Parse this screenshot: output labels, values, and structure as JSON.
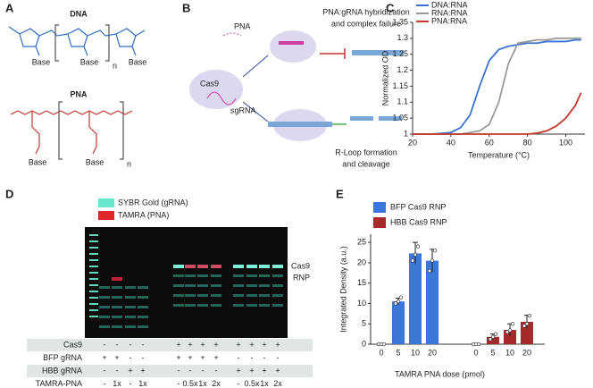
{
  "panel_labels": [
    "A",
    "B",
    "C",
    "D",
    "E"
  ],
  "panel_a": {
    "dna_title": "DNA",
    "pna_title": "PNA",
    "dna_bases": [
      "Base",
      "Base",
      "Base"
    ],
    "pna_bases": [
      "Base",
      "Base"
    ],
    "dna_n": "n",
    "pna_n": "n"
  },
  "panel_b": {
    "pna": "PNA",
    "cas9": "Cas9",
    "sgrna": "sgRNA",
    "failure": [
      "PNA:gRNA hybridization",
      "and complex failure"
    ],
    "cleavage": [
      "R-Loop formation",
      "and cleavage"
    ]
  },
  "panel_d": {
    "legend": [
      "SYBR Gold (gRNA)",
      "TAMRA (PNA)"
    ],
    "legend_colors": [
      "#66e8cf",
      "#e02828"
    ],
    "band_label": [
      "Cas9",
      "RNP"
    ],
    "rows": [
      {
        "label": "Cas9",
        "cells": [
          "-",
          "-",
          "-",
          "-",
          "+",
          "+",
          "+",
          "+",
          "+",
          "+",
          "+",
          "+"
        ]
      },
      {
        "label": "BFP gRNA",
        "cells": [
          "+",
          "+",
          "-",
          "-",
          "+",
          "+",
          "+",
          "+",
          "-",
          "-",
          "-",
          "-"
        ]
      },
      {
        "label": "HBB gRNA",
        "cells": [
          "-",
          "-",
          "+",
          "+",
          "-",
          "-",
          "-",
          "-",
          "+",
          "+",
          "+",
          "+"
        ]
      },
      {
        "label": "TAMRA-PNA",
        "cells": [
          "-",
          "1x",
          "-",
          "1x",
          "-",
          "0.5x",
          "1x",
          "2x",
          "-",
          "0.5x",
          "1x",
          "2x"
        ]
      }
    ]
  },
  "chart_data": [
    {
      "type": "line",
      "xlabel": "Temperature (°C)",
      "ylabel": "Normalized OD",
      "legend": "top-left",
      "x": [
        20,
        30,
        40,
        45,
        50,
        55,
        60,
        65,
        70,
        75,
        80,
        85,
        90,
        95,
        100,
        105,
        108
      ],
      "series": [
        {
          "name": "DNA:RNA",
          "color": "#3a74d0",
          "values": [
            1.0,
            1.0,
            1.005,
            1.02,
            1.06,
            1.15,
            1.23,
            1.265,
            1.275,
            1.28,
            1.285,
            1.285,
            1.29,
            1.29,
            1.29,
            1.295,
            1.295
          ]
        },
        {
          "name": "RNA:RNA",
          "color": "#9a9a9a",
          "values": [
            1.0,
            1.0,
            1.0,
            1.0,
            1.005,
            1.01,
            1.03,
            1.1,
            1.22,
            1.285,
            1.29,
            1.295,
            1.295,
            1.3,
            1.3,
            1.3,
            1.3
          ]
        },
        {
          "name": "PNA:RNA",
          "color": "#c0392b",
          "values": [
            1.0,
            1.0,
            1.0,
            1.0,
            1.0,
            1.0,
            1.0,
            1.0,
            1.0,
            1.0,
            1.0,
            1.003,
            1.01,
            1.025,
            1.05,
            1.09,
            1.13
          ]
        }
      ],
      "xlim": [
        20,
        110
      ],
      "xticks": [
        20,
        40,
        60,
        80,
        100
      ],
      "ylim": [
        1,
        1.35
      ],
      "yticks": [
        1,
        1.05,
        1.1,
        1.15,
        1.2,
        1.25,
        1.3,
        1.35
      ]
    },
    {
      "type": "bar",
      "xlabel": "TAMRA PNA dose (pmol)",
      "ylabel": "Integrated Density (a.u.)",
      "legend": "top-left",
      "categories": [
        "0",
        "5",
        "10",
        "20",
        "0",
        "5",
        "10",
        "20"
      ],
      "series": [
        {
          "name": "BFP Cas9 RNP",
          "color": "#3b78d8",
          "values": [
            0,
            10.5,
            22.3,
            20.5,
            null,
            null,
            null,
            null
          ],
          "errors": [
            0,
            0.8,
            2.7,
            2.8,
            null,
            null,
            null,
            null
          ],
          "points": [
            [
              0,
              0,
              0
            ],
            [
              10,
              10.5,
              11.5
            ],
            [
              20.5,
              22,
              24
            ],
            [
              18,
              20.5,
              23
            ],
            null,
            null,
            null,
            null
          ]
        },
        {
          "name": "HBB Cas9 RNP",
          "color": "#a52a2a",
          "values": [
            null,
            null,
            null,
            null,
            0,
            1.8,
            3.5,
            5.5
          ],
          "errors": [
            null,
            null,
            null,
            null,
            0,
            0.7,
            1.5,
            1.6
          ],
          "points": [
            null,
            null,
            null,
            null,
            [
              0,
              0,
              0
            ],
            [
              1.2,
              1.8,
              2.5
            ],
            [
              3,
              3.4,
              5
            ],
            [
              4.5,
              5,
              7
            ]
          ]
        }
      ],
      "ylim": [
        0,
        27
      ],
      "yticks": [
        0,
        5,
        10,
        15,
        20,
        25
      ]
    }
  ]
}
